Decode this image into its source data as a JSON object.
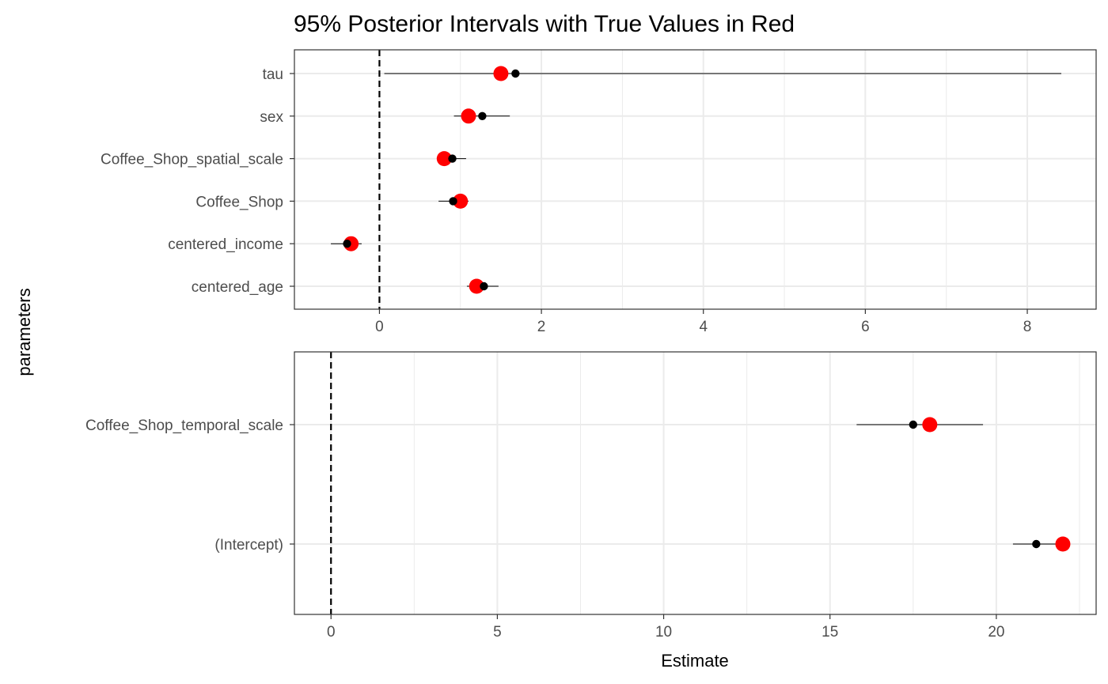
{
  "title": "95% Posterior Intervals with True Values in Red",
  "ylabel": "parameters",
  "xlabel": "Estimate",
  "colors": {
    "estimate": "#000000",
    "true_value": "#ff0000",
    "interval": "#000000",
    "zero_line": "#000000",
    "grid": "#ebebeb",
    "panel_border": "#333333",
    "tick_label": "#4d4d4d"
  },
  "chart_data": [
    {
      "type": "scatter",
      "panel": "top",
      "xlim": [
        -1.05,
        8.85
      ],
      "x_ticks": [
        0,
        2,
        4,
        6,
        8
      ],
      "x_tick_labels": [
        "0",
        "2",
        "4",
        "6",
        "8"
      ],
      "x_minor_ticks": [
        1,
        3,
        5,
        7
      ],
      "reference_line_x": 0,
      "categories": [
        "tau",
        "sex",
        "Coffee_Shop_spatial_scale",
        "Coffee_Shop",
        "centered_income",
        "centered_age"
      ],
      "series": [
        {
          "role": "estimate",
          "values": [
            1.68,
            1.27,
            0.9,
            0.91,
            -0.4,
            1.29
          ]
        },
        {
          "role": "lower",
          "values": [
            0.06,
            0.92,
            0.72,
            0.73,
            -0.6,
            1.08
          ]
        },
        {
          "role": "upper",
          "values": [
            8.42,
            1.61,
            1.07,
            1.1,
            -0.22,
            1.47
          ]
        },
        {
          "role": "true_value",
          "values": [
            1.5,
            1.1,
            0.8,
            1.0,
            -0.35,
            1.2
          ]
        }
      ]
    },
    {
      "type": "scatter",
      "panel": "bottom",
      "xlim": [
        -1.1,
        23.0
      ],
      "x_ticks": [
        0,
        5,
        10,
        15,
        20
      ],
      "x_tick_labels": [
        "0",
        "5",
        "10",
        "15",
        "20"
      ],
      "x_minor_ticks": [
        2.5,
        7.5,
        12.5,
        17.5,
        22.5
      ],
      "reference_line_x": 0,
      "categories": [
        "Coffee_Shop_temporal_scale",
        "(Intercept)"
      ],
      "series": [
        {
          "role": "estimate",
          "values": [
            17.5,
            21.2
          ]
        },
        {
          "role": "lower",
          "values": [
            15.8,
            20.5
          ]
        },
        {
          "role": "upper",
          "values": [
            19.6,
            22.0
          ]
        },
        {
          "role": "true_value",
          "values": [
            18.0,
            22.0
          ]
        }
      ]
    }
  ]
}
